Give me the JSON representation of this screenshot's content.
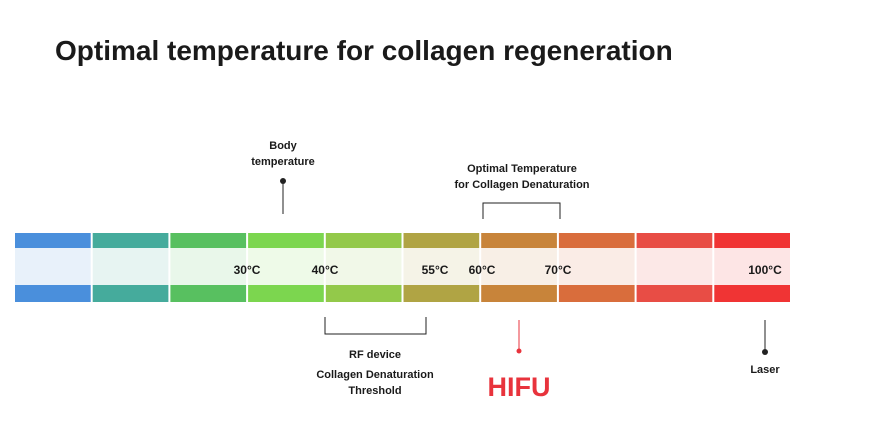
{
  "header": {
    "title": "Optimal temperature for collagen regeneration"
  },
  "scale": {
    "labels": [
      "30°C",
      "40°C",
      "55°C",
      "60°C",
      "70°C",
      "100°C"
    ]
  },
  "annotations": {
    "body": {
      "lines": [
        "Body",
        "temperature"
      ]
    },
    "optimal": {
      "lines": [
        "Optimal Temperature",
        "for Collagen Denaturation"
      ]
    },
    "rf": {
      "title": "RF device",
      "lines": [
        "Collagen Denaturation",
        "Threshold"
      ]
    },
    "hifu": {
      "label": "HIFU"
    },
    "laser": {
      "label": "Laser"
    }
  }
}
